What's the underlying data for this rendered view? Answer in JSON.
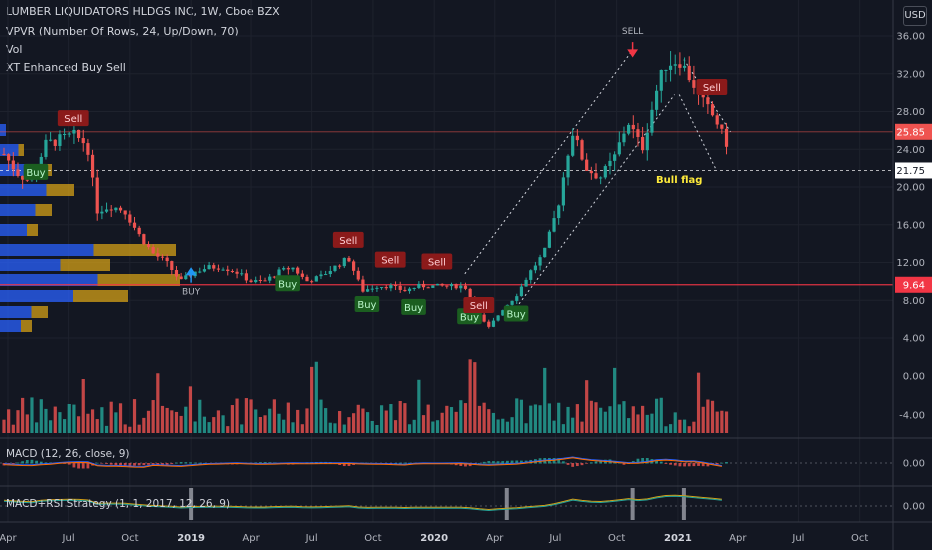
{
  "header": {
    "title": "LUMBER LIQUIDATORS HLDGS INC, 1W, Cboe BZX",
    "indicators": [
      "VPVR (Number Of Rows, 24, Up/Down, 70)",
      "Vol",
      "XT Enhanced Buy Sell"
    ],
    "currency": "USD"
  },
  "panes": {
    "macd_label": "MACD (12, 26, close, 9)",
    "strategy_label": "MACD+RSI Strategy (1, 1, 2017, 12, 26, 9)"
  },
  "colors": {
    "background": "#131722",
    "up": "#26a69a",
    "down": "#ef5350",
    "vpvr_up": "#2962ff",
    "vpvr_down": "#d4a017",
    "resistance": "#f23645",
    "text": "#b2b5be"
  },
  "chart_data": {
    "type": "candlestick",
    "x_axis": {
      "range": [
        "2018-03-20",
        "2021-11-20"
      ],
      "tick_labels": [
        {
          "label": "Apr",
          "date": "2018-04-01"
        },
        {
          "label": "Jul",
          "date": "2018-07-01"
        },
        {
          "label": "Oct",
          "date": "2018-10-01"
        },
        {
          "label": "2019",
          "date": "2019-01-01"
        },
        {
          "label": "Apr",
          "date": "2019-04-01"
        },
        {
          "label": "Jul",
          "date": "2019-07-01"
        },
        {
          "label": "Oct",
          "date": "2019-10-01"
        },
        {
          "label": "2020",
          "date": "2020-01-01"
        },
        {
          "label": "Apr",
          "date": "2020-04-01"
        },
        {
          "label": "Jul",
          "date": "2020-07-01"
        },
        {
          "label": "Oct",
          "date": "2020-10-01"
        },
        {
          "label": "2021",
          "date": "2021-01-01"
        },
        {
          "label": "Apr",
          "date": "2021-04-01"
        },
        {
          "label": "Jul",
          "date": "2021-07-01"
        },
        {
          "label": "Oct",
          "date": "2021-10-01"
        }
      ]
    },
    "price_axis": {
      "range": [
        4.0,
        36.0
      ],
      "ticks": [
        "36.00",
        "32.00",
        "28.00",
        "24.00",
        "20.00",
        "16.00",
        "12.00",
        "8.00",
        "4.00"
      ],
      "markers": [
        {
          "label": "25.85",
          "value": 25.85,
          "color": "#ef5350"
        },
        {
          "label": "21.75",
          "value": 21.75,
          "color": "#ffffff"
        },
        {
          "label": "9.64",
          "value": 9.64,
          "color": "#f23645"
        }
      ]
    },
    "volume_axis_ticks": [
      "0.00",
      "-4.00"
    ],
    "macd_axis_ticks": [
      "0.00"
    ],
    "strategy_axis_ticks": [
      "0.00"
    ],
    "price_path": [
      [
        "2018-03-26",
        23.5
      ],
      [
        "2018-04-15",
        21.5
      ],
      [
        "2018-05-06",
        20.5
      ],
      [
        "2018-05-27",
        24.5
      ],
      [
        "2018-06-17",
        25.0
      ],
      [
        "2018-07-08",
        25.5
      ],
      [
        "2018-07-29",
        24.5
      ],
      [
        "2018-08-12",
        17.5
      ],
      [
        "2018-09-02",
        18.0
      ],
      [
        "2018-09-23",
        17.5
      ],
      [
        "2018-10-14",
        15.0
      ],
      [
        "2018-11-04",
        13.0
      ],
      [
        "2018-11-25",
        12.0
      ],
      [
        "2018-12-16",
        10.0
      ],
      [
        "2019-01-06",
        11.0
      ],
      [
        "2019-01-27",
        11.5
      ],
      [
        "2019-02-17",
        11.5
      ],
      [
        "2019-03-10",
        11.0
      ],
      [
        "2019-03-31",
        10.0
      ],
      [
        "2019-04-21",
        10.0
      ],
      [
        "2019-05-12",
        11.0
      ],
      [
        "2019-06-02",
        11.5
      ],
      [
        "2019-06-23",
        10.0
      ],
      [
        "2019-07-14",
        10.5
      ],
      [
        "2019-08-04",
        11.5
      ],
      [
        "2019-08-25",
        12.5
      ],
      [
        "2019-09-15",
        9.0
      ],
      [
        "2019-10-06",
        9.5
      ],
      [
        "2019-10-27",
        9.5
      ],
      [
        "2019-11-17",
        9.0
      ],
      [
        "2019-12-08",
        9.5
      ],
      [
        "2020-01-05",
        9.5
      ],
      [
        "2020-01-26",
        9.5
      ],
      [
        "2020-02-16",
        9.5
      ],
      [
        "2020-03-08",
        6.5
      ],
      [
        "2020-03-22",
        5.0
      ],
      [
        "2020-04-12",
        7.0
      ],
      [
        "2020-05-03",
        8.5
      ],
      [
        "2020-05-24",
        11.0
      ],
      [
        "2020-06-14",
        13.0
      ],
      [
        "2020-07-05",
        18.0
      ],
      [
        "2020-07-26",
        26.0
      ],
      [
        "2020-08-16",
        22.0
      ],
      [
        "2020-09-06",
        21.0
      ],
      [
        "2020-09-27",
        23.0
      ],
      [
        "2020-10-18",
        27.0
      ],
      [
        "2020-11-08",
        24.0
      ],
      [
        "2020-11-29",
        30.0
      ],
      [
        "2020-12-13",
        33.0
      ],
      [
        "2021-01-03",
        33.5
      ],
      [
        "2021-01-24",
        31.0
      ],
      [
        "2021-02-07",
        29.0
      ],
      [
        "2021-02-28",
        27.0
      ],
      [
        "2021-03-14",
        24.5
      ],
      [
        "2021-03-21",
        25.85
      ]
    ],
    "signals": [
      {
        "type": "sell",
        "label": "Sell",
        "date": "2018-07-08",
        "price": 27.3
      },
      {
        "type": "buy",
        "label": "Buy",
        "date": "2018-05-13",
        "price": 21.6
      },
      {
        "type": "buy",
        "label": "BUY",
        "date": "2019-01-01",
        "price": 8.6
      },
      {
        "type": "buy",
        "label": "Buy",
        "date": "2019-05-26",
        "price": 9.8
      },
      {
        "type": "sell",
        "label": "Sell",
        "date": "2019-08-25",
        "price": 14.4
      },
      {
        "type": "buy",
        "label": "Buy",
        "date": "2019-09-22",
        "price": 7.6
      },
      {
        "type": "sell",
        "label": "Sell",
        "date": "2019-10-27",
        "price": 12.3
      },
      {
        "type": "buy",
        "label": "Buy",
        "date": "2019-12-01",
        "price": 7.3
      },
      {
        "type": "sell",
        "label": "Sell",
        "date": "2020-01-05",
        "price": 12.1
      },
      {
        "type": "buy",
        "label": "Buy",
        "date": "2020-02-23",
        "price": 6.3
      },
      {
        "type": "sell",
        "label": "Sell",
        "date": "2020-03-08",
        "price": 7.5
      },
      {
        "type": "buy",
        "label": "Buy",
        "date": "2020-05-03",
        "price": 6.6
      },
      {
        "type": "sell",
        "label": "SELL",
        "date": "2020-10-25",
        "price": 36.2
      },
      {
        "type": "sell",
        "label": "Sell",
        "date": "2021-02-21",
        "price": 30.6
      }
    ],
    "annotations": [
      {
        "text": "Bull flag",
        "date": "2021-01-03",
        "price": 20.4
      }
    ]
  }
}
